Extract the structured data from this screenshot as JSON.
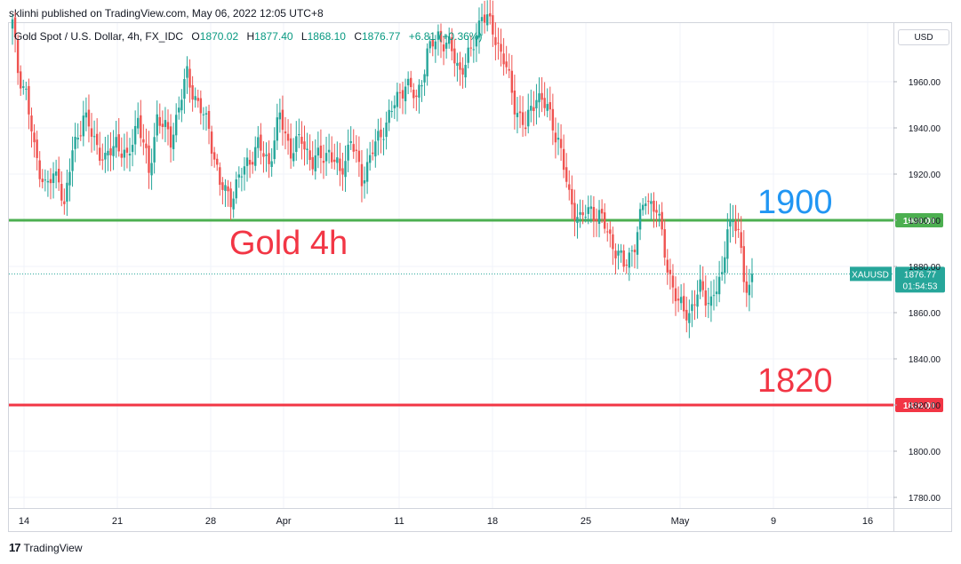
{
  "header": {
    "published": "sklinhi published on TradingView.com, May 06, 2022 12:05 UTC+8"
  },
  "legend": {
    "symbol": "Gold Spot / U.S. Dollar, 4h, FX_IDC",
    "open_label": "O",
    "open": "1870.02",
    "high_label": "H",
    "high": "1877.40",
    "low_label": "L",
    "low": "1868.10",
    "close_label": "C",
    "close": "1876.77",
    "change": "+6.81 (+0.36%)"
  },
  "currency_button": "USD",
  "footer": {
    "brand": "TradingView",
    "logo_glyph": "17"
  },
  "colors": {
    "up": "#26a69a",
    "down": "#ef5350",
    "line_green": "#4caf50",
    "line_red": "#f23645",
    "text_blue": "#2196f3",
    "text_red": "#f23645"
  },
  "chart_data": {
    "type": "candlestick",
    "symbol": "XAUUSD",
    "timeframe": "4h",
    "ylim": [
      1770,
      1990
    ],
    "y_ticks": [
      "1780.00",
      "1800.00",
      "1820.00",
      "1840.00",
      "1860.00",
      "1880.00",
      "1900.00",
      "1920.00",
      "1940.00",
      "1960.00"
    ],
    "x_ticks": [
      "14",
      "21",
      "28",
      "Apr",
      "11",
      "18",
      "25",
      "May",
      "9",
      "16"
    ],
    "horizontal_lines": [
      {
        "value": 1900,
        "label": "1900.00",
        "color": "#4caf50"
      },
      {
        "value": 1820,
        "label": "1820.00",
        "color": "#f23645"
      }
    ],
    "price_marker": {
      "symbol": "XAUUSD",
      "value": 1876.77,
      "label": "1876.77",
      "countdown": "01:54:53"
    },
    "annotations": [
      {
        "text": "Gold 4h",
        "color": "#f23645"
      },
      {
        "text": "1900",
        "color": "#2196f3"
      },
      {
        "text": "1820",
        "color": "#f23645"
      }
    ],
    "anchors": [
      [
        0,
        1985
      ],
      [
        2,
        1965
      ],
      [
        5,
        1955
      ],
      [
        8,
        1930
      ],
      [
        12,
        1915
      ],
      [
        17,
        1920
      ],
      [
        19,
        1905
      ],
      [
        22,
        1930
      ],
      [
        26,
        1945
      ],
      [
        30,
        1935
      ],
      [
        34,
        1925
      ],
      [
        38,
        1935
      ],
      [
        42,
        1925
      ],
      [
        46,
        1945
      ],
      [
        50,
        1920
      ],
      [
        53,
        1945
      ],
      [
        58,
        1935
      ],
      [
        64,
        1963
      ],
      [
        68,
        1950
      ],
      [
        72,
        1940
      ],
      [
        76,
        1915
      ],
      [
        80,
        1910
      ],
      [
        86,
        1925
      ],
      [
        90,
        1932
      ],
      [
        94,
        1925
      ],
      [
        98,
        1945
      ],
      [
        102,
        1930
      ],
      [
        106,
        1935
      ],
      [
        110,
        1925
      ],
      [
        116,
        1930
      ],
      [
        120,
        1920
      ],
      [
        124,
        1935
      ],
      [
        128,
        1918
      ],
      [
        132,
        1930
      ],
      [
        136,
        1940
      ],
      [
        140,
        1950
      ],
      [
        144,
        1960
      ],
      [
        148,
        1952
      ],
      [
        152,
        1972
      ],
      [
        156,
        1980
      ],
      [
        160,
        1975
      ],
      [
        164,
        1965
      ],
      [
        168,
        1972
      ],
      [
        172,
        1990
      ],
      [
        176,
        1982
      ],
      [
        180,
        1970
      ],
      [
        184,
        1950
      ],
      [
        188,
        1940
      ],
      [
        192,
        1955
      ],
      [
        196,
        1948
      ],
      [
        200,
        1935
      ],
      [
        204,
        1910
      ],
      [
        208,
        1900
      ],
      [
        212,
        1905
      ],
      [
        216,
        1900
      ],
      [
        220,
        1890
      ],
      [
        224,
        1880
      ],
      [
        228,
        1890
      ],
      [
        232,
        1910
      ],
      [
        236,
        1905
      ],
      [
        240,
        1880
      ],
      [
        244,
        1863
      ],
      [
        248,
        1860
      ],
      [
        252,
        1870
      ],
      [
        256,
        1865
      ],
      [
        260,
        1875
      ],
      [
        262,
        1900
      ],
      [
        266,
        1895
      ],
      [
        268,
        1875
      ],
      [
        270,
        1872
      ],
      [
        271,
        1876.77
      ]
    ]
  }
}
